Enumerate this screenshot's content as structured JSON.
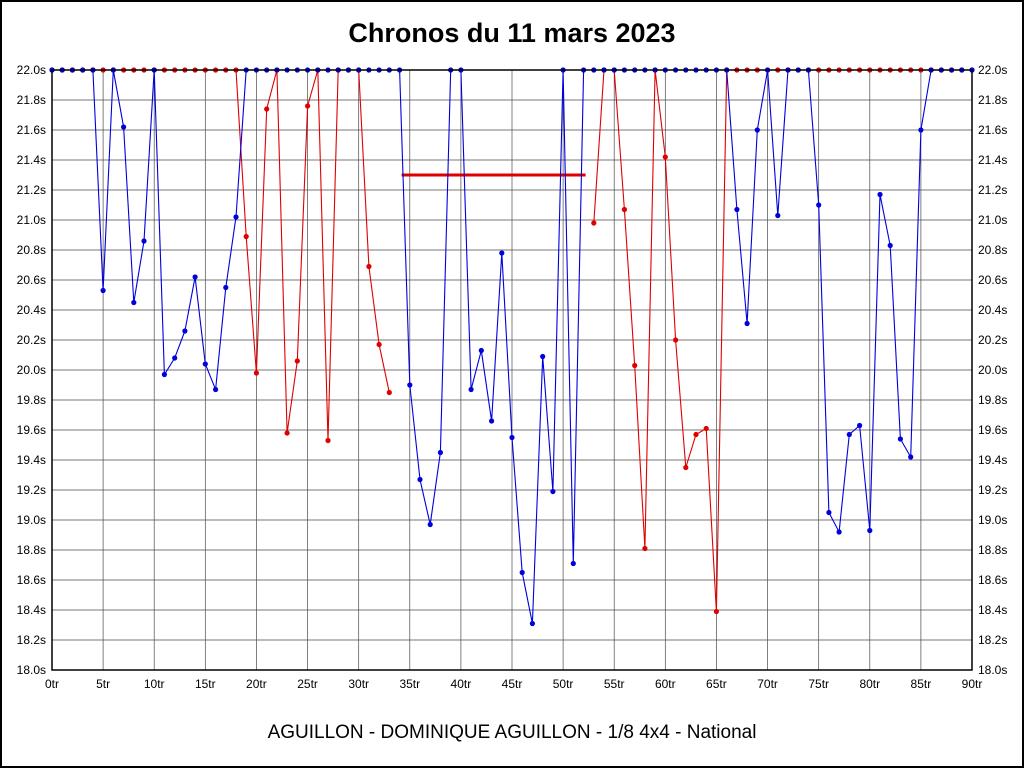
{
  "chart_data": {
    "type": "line",
    "title": "Chronos du 11 mars 2023",
    "caption": "AGUILLON - DOMINIQUE AGUILLON - 1/8 4x4 - National",
    "xlim": [
      0,
      90
    ],
    "x_tick_step": 5,
    "x_unit": "tr",
    "ylim": [
      18.0,
      22.0
    ],
    "y_tick_step": 0.2,
    "y_unit": "s",
    "grid": true,
    "clip_max": 22.0,
    "legend": "none",
    "series": [
      {
        "name": "red",
        "color": "#e00000",
        "marker": "circle",
        "segments": [
          [
            [
              0,
              22
            ],
            [
              1,
              22
            ],
            [
              2,
              22
            ],
            [
              3,
              22
            ],
            [
              4,
              22
            ],
            [
              5,
              22
            ],
            [
              6,
              22
            ],
            [
              7,
              22
            ],
            [
              8,
              22
            ],
            [
              9,
              22
            ],
            [
              10,
              22
            ],
            [
              11,
              22
            ],
            [
              12,
              22
            ],
            [
              13,
              22
            ],
            [
              14,
              22
            ],
            [
              15,
              22
            ],
            [
              16,
              22
            ],
            [
              17,
              22
            ],
            [
              18,
              22
            ],
            [
              19,
              20.89
            ],
            [
              20,
              19.98
            ],
            [
              21,
              21.74
            ],
            [
              22,
              22
            ],
            [
              23,
              19.58
            ],
            [
              24,
              20.06
            ],
            [
              25,
              21.76
            ],
            [
              26,
              22
            ],
            [
              27,
              19.53
            ],
            [
              28,
              22
            ],
            [
              29,
              22
            ],
            [
              30,
              22
            ],
            [
              31,
              20.69
            ],
            [
              32,
              20.17
            ],
            [
              33,
              19.85
            ]
          ],
          [
            [
              53,
              20.98
            ],
            [
              54,
              22
            ],
            [
              55,
              22
            ],
            [
              56,
              21.07
            ],
            [
              57,
              20.03
            ],
            [
              58,
              18.81
            ],
            [
              59,
              22
            ],
            [
              60,
              21.42
            ],
            [
              61,
              20.2
            ],
            [
              62,
              19.35
            ],
            [
              63,
              19.57
            ],
            [
              64,
              19.61
            ],
            [
              65,
              18.39
            ],
            [
              66,
              22
            ],
            [
              67,
              22
            ],
            [
              68,
              22
            ],
            [
              69,
              22
            ],
            [
              70,
              22
            ],
            [
              71,
              22
            ],
            [
              72,
              22
            ],
            [
              73,
              22
            ],
            [
              74,
              22
            ],
            [
              75,
              22
            ],
            [
              76,
              22
            ],
            [
              77,
              22
            ],
            [
              78,
              22
            ],
            [
              79,
              22
            ],
            [
              80,
              22
            ],
            [
              81,
              22
            ],
            [
              82,
              22
            ],
            [
              83,
              22
            ],
            [
              84,
              22
            ],
            [
              85,
              22
            ],
            [
              86,
              22
            ],
            [
              87,
              22
            ],
            [
              88,
              22
            ],
            [
              89,
              22
            ],
            [
              90,
              22
            ]
          ]
        ]
      },
      {
        "name": "blue",
        "color": "#0000dd",
        "marker": "circle",
        "segments": [
          [
            [
              0,
              22
            ],
            [
              1,
              22
            ],
            [
              2,
              22
            ],
            [
              3,
              22
            ],
            [
              4,
              22
            ],
            [
              5,
              20.53
            ],
            [
              6,
              22
            ],
            [
              7,
              21.62
            ],
            [
              8,
              20.45
            ],
            [
              9,
              20.86
            ],
            [
              10,
              22
            ],
            [
              11,
              19.97
            ],
            [
              12,
              20.08
            ],
            [
              13,
              20.26
            ],
            [
              14,
              20.62
            ],
            [
              15,
              20.04
            ],
            [
              16,
              19.87
            ],
            [
              17,
              20.55
            ],
            [
              18,
              21.02
            ],
            [
              19,
              22
            ],
            [
              20,
              22
            ],
            [
              21,
              22
            ],
            [
              22,
              22
            ],
            [
              23,
              22
            ],
            [
              24,
              22
            ],
            [
              25,
              22
            ],
            [
              26,
              22
            ],
            [
              27,
              22
            ],
            [
              28,
              22
            ],
            [
              29,
              22
            ],
            [
              30,
              22
            ],
            [
              31,
              22
            ],
            [
              32,
              22
            ],
            [
              33,
              22
            ],
            [
              34,
              22
            ],
            [
              35,
              19.9
            ],
            [
              36,
              19.27
            ],
            [
              37,
              18.97
            ],
            [
              38,
              19.45
            ],
            [
              39,
              22
            ],
            [
              40,
              22
            ],
            [
              41,
              19.87
            ],
            [
              42,
              20.13
            ],
            [
              43,
              19.66
            ],
            [
              44,
              20.78
            ],
            [
              45,
              19.55
            ],
            [
              46,
              18.65
            ],
            [
              47,
              18.31
            ],
            [
              48,
              20.09
            ],
            [
              49,
              19.19
            ],
            [
              50,
              22
            ],
            [
              51,
              18.71
            ],
            [
              52,
              22
            ],
            [
              53,
              22
            ],
            [
              54,
              22
            ],
            [
              55,
              22
            ],
            [
              56,
              22
            ],
            [
              57,
              22
            ],
            [
              58,
              22
            ],
            [
              59,
              22
            ],
            [
              60,
              22
            ],
            [
              61,
              22
            ],
            [
              62,
              22
            ],
            [
              63,
              22
            ],
            [
              64,
              22
            ],
            [
              65,
              22
            ],
            [
              66,
              22
            ],
            [
              67,
              21.07
            ],
            [
              68,
              20.31
            ],
            [
              69,
              21.6
            ],
            [
              70,
              22
            ],
            [
              71,
              21.03
            ],
            [
              72,
              22
            ],
            [
              73,
              22
            ],
            [
              74,
              22
            ],
            [
              75,
              21.1
            ],
            [
              76,
              19.05
            ],
            [
              77,
              18.92
            ],
            [
              78,
              19.57
            ],
            [
              79,
              19.63
            ],
            [
              80,
              18.93
            ],
            [
              81,
              21.17
            ],
            [
              82,
              20.83
            ],
            [
              83,
              19.54
            ],
            [
              84,
              19.42
            ],
            [
              85,
              21.6
            ],
            [
              86,
              22
            ],
            [
              87,
              22
            ],
            [
              88,
              22
            ],
            [
              89,
              22
            ],
            [
              90,
              22
            ]
          ]
        ]
      }
    ],
    "annotations": [
      {
        "type": "hline-segment",
        "y": 21.3,
        "x1": 34.2,
        "x2": 52.2,
        "color": "#e00000",
        "width": 3
      }
    ]
  }
}
